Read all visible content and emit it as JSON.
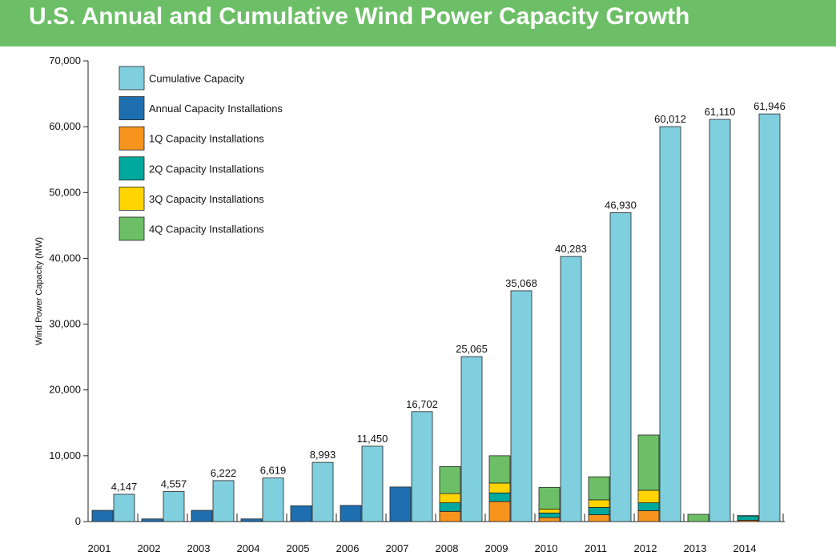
{
  "header": {
    "title": "U.S. Annual and Cumulative Wind Power Capacity Growth"
  },
  "colors": {
    "header_bg": "#6cbf66",
    "cumulative": "#7fcfdf",
    "annual": "#1e6fb0",
    "q1": "#f7941d",
    "q2": "#00a99d",
    "q3": "#ffd400",
    "q4": "#6cbf66"
  },
  "chart_data": {
    "type": "bar",
    "title": "U.S. Annual and Cumulative Wind Power Capacity Growth",
    "xlabel": "",
    "ylabel": "Wind Power Capacity (MW)",
    "ylim": [
      0,
      70000
    ],
    "yticks": [
      0,
      10000,
      20000,
      30000,
      40000,
      50000,
      60000,
      70000
    ],
    "ytick_labels": [
      "0",
      "10,000",
      "20,000",
      "30,000",
      "40,000",
      "50,000",
      "60,000",
      "70,000"
    ],
    "grid": false,
    "legend_position": "top-left",
    "categories": [
      "2001",
      "2002",
      "2003",
      "2004",
      "2005",
      "2006",
      "2007",
      "2008",
      "2009",
      "2010",
      "2011",
      "2012",
      "2013",
      "2014"
    ],
    "legend": [
      {
        "label": "Cumulative Capacity",
        "color": "#7fcfdf"
      },
      {
        "label": "Annual Capacity Installations",
        "color": "#1e6fb0"
      },
      {
        "label": "1Q Capacity Installations",
        "color": "#f7941d"
      },
      {
        "label": "2Q Capacity Installations",
        "color": "#00a99d"
      },
      {
        "label": "3Q Capacity Installations",
        "color": "#ffd400"
      },
      {
        "label": "4Q Capacity Installations",
        "color": "#6cbf66"
      }
    ],
    "series": [
      {
        "name": "Cumulative Capacity",
        "color": "#7fcfdf",
        "values": [
          4147,
          4557,
          6222,
          6619,
          8993,
          11450,
          16702,
          25065,
          35068,
          40283,
          46930,
          60012,
          61110,
          61946
        ],
        "labels": [
          "4,147",
          "4,557",
          "6,222",
          "6,619",
          "8,993",
          "11,450",
          "16,702",
          "25,065",
          "35,068",
          "40,283",
          "46,930",
          "60,012",
          "61,110",
          "61,946"
        ]
      },
      {
        "name": "Annual Capacity Installations",
        "color": "#1e6fb0",
        "values": [
          1700,
          400,
          1700,
          400,
          2400,
          2450,
          5250,
          null,
          null,
          null,
          null,
          null,
          null,
          null
        ]
      },
      {
        "name": "1Q Capacity Installations",
        "color": "#f7941d",
        "values": [
          null,
          null,
          null,
          null,
          null,
          null,
          null,
          1550,
          3050,
          600,
          1050,
          1650,
          0,
          200
        ]
      },
      {
        "name": "2Q Capacity Installations",
        "color": "#00a99d",
        "values": [
          null,
          null,
          null,
          null,
          null,
          null,
          null,
          1300,
          1300,
          700,
          1100,
          1200,
          0,
          650
        ]
      },
      {
        "name": "3Q Capacity Installations",
        "color": "#ffd400",
        "values": [
          null,
          null,
          null,
          null,
          null,
          null,
          null,
          1400,
          1500,
          600,
          1150,
          1900,
          0,
          0
        ]
      },
      {
        "name": "4Q Capacity Installations",
        "color": "#6cbf66",
        "values": [
          null,
          null,
          null,
          null,
          null,
          null,
          null,
          4100,
          4150,
          3300,
          3500,
          8400,
          1100,
          50
        ]
      }
    ]
  }
}
